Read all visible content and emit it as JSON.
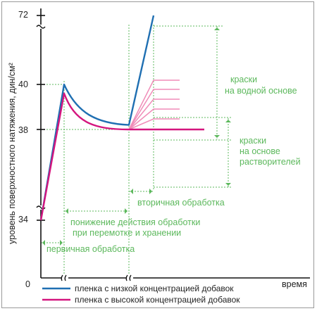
{
  "chart_data": {
    "type": "line",
    "ylabel": "уровень поверхностного натяжения, дин/см²",
    "xlabel": "время",
    "origin_label": "0",
    "yticks": [
      "34",
      "38",
      "40",
      "72"
    ],
    "series": [
      {
        "name": "пленка с низкой концентрацией добавок",
        "color": "#1f6fb2",
        "points": [
          [
            0,
            34
          ],
          [
            1,
            40
          ],
          [
            2,
            38.2
          ],
          [
            2.3,
            72
          ]
        ]
      },
      {
        "name": "пленка с высокой концентрацией добавок",
        "color": "#d4157e",
        "points": [
          [
            0,
            34
          ],
          [
            1,
            39.6
          ],
          [
            2,
            38
          ],
          [
            2.8,
            38
          ]
        ]
      }
    ],
    "fan_lines_color": "#f08cb8",
    "annotations": {
      "primary": "первичная обработка",
      "decline_line1": "понижение действия обработки",
      "decline_line2": "при перемотке и хранении",
      "secondary": "вторичная обработка",
      "water_line1": "краски",
      "water_line2": "на водной основе",
      "solvent_line1": "краски",
      "solvent_line2": "на основе",
      "solvent_line3": "растворителей"
    },
    "annotation_color": "#5cb85c",
    "legend_placement": "bottom"
  }
}
